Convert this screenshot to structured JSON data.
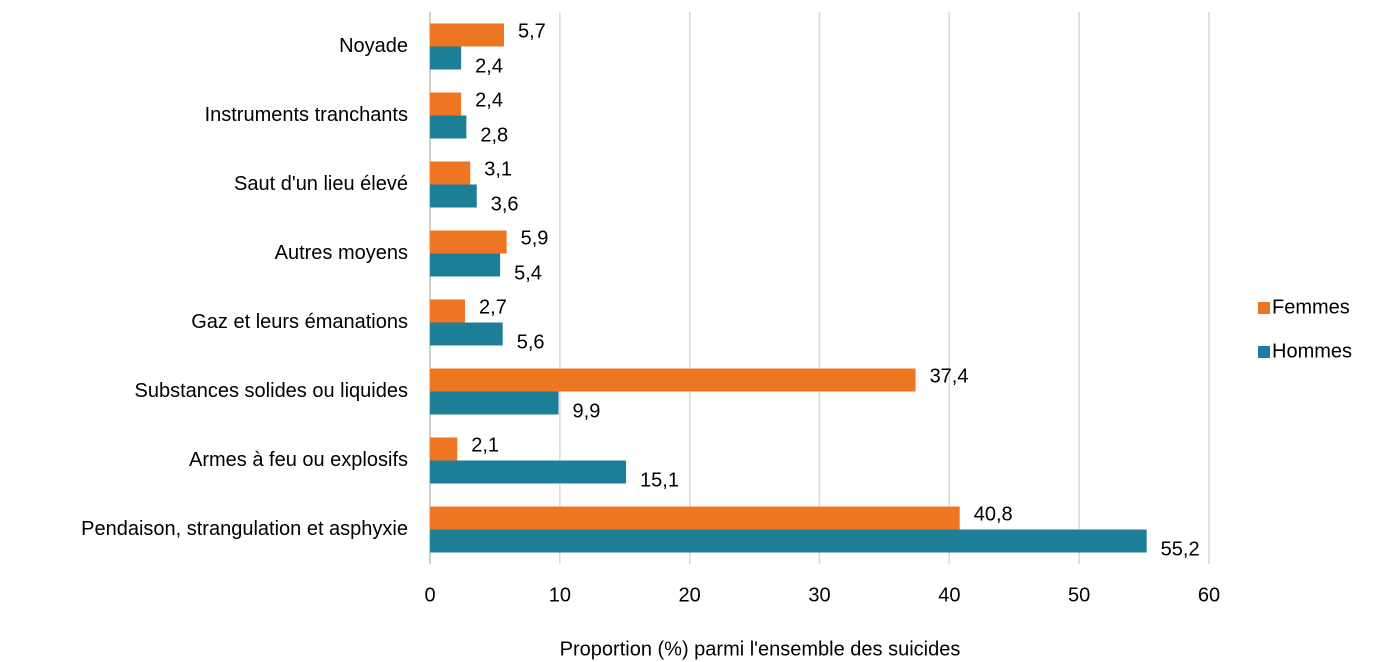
{
  "chart_data": {
    "type": "barh",
    "xlabel": "Proportion (%) parmi l'ensemble des suicides",
    "categories": [
      "Noyade",
      "Instruments tranchants",
      "Saut d'un lieu élevé",
      "Autres moyens",
      "Gaz et leurs émanations",
      "Substances solides ou liquides",
      "Armes à feu ou explosifs",
      "Pendaison, strangulation et asphyxie"
    ],
    "series": [
      {
        "name": "Femmes",
        "color": "#ee7623",
        "values": [
          5.7,
          2.4,
          3.1,
          5.9,
          2.7,
          37.4,
          2.1,
          40.8
        ],
        "value_labels": [
          "5,7",
          "2,4",
          "3,1",
          "5,9",
          "2,7",
          "37,4",
          "2,1",
          "40,8"
        ]
      },
      {
        "name": "Hommes",
        "color": "#1d7f97",
        "values": [
          2.4,
          2.8,
          3.6,
          5.4,
          5.6,
          9.9,
          15.1,
          55.2
        ],
        "value_labels": [
          "2,4",
          "2,8",
          "3,6",
          "5,4",
          "5,6",
          "9,9",
          "15,1",
          "55,2"
        ]
      }
    ],
    "xlim": [
      0,
      60
    ],
    "xticks": [
      0,
      10,
      20,
      30,
      40,
      50,
      60
    ],
    "grid": true,
    "legend": "right"
  }
}
